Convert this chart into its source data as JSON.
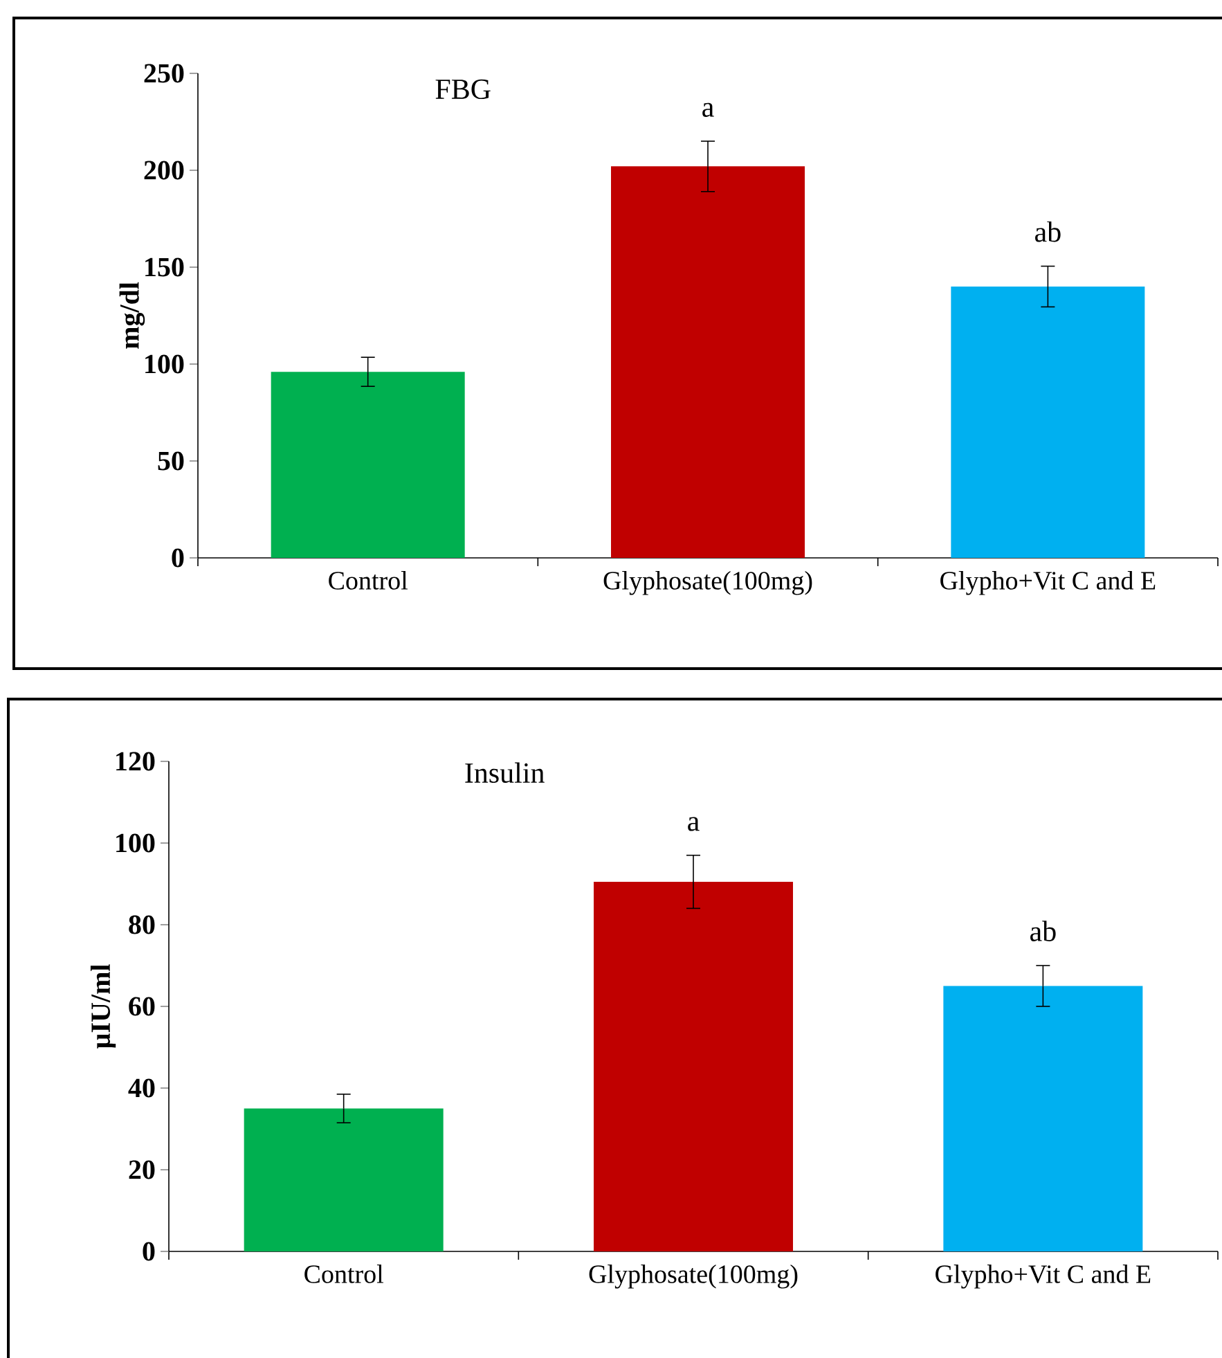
{
  "chart_data": [
    {
      "type": "bar",
      "title": "FBG",
      "ylabel": "mg/dl",
      "categories": [
        "Control",
        "Glyphosate(100mg)",
        "Glypho+Vit C and E"
      ],
      "values": [
        96,
        202,
        140
      ],
      "errors": [
        7.5,
        13,
        10.5
      ],
      "colors": [
        "#00b050",
        "#c00000",
        "#00b0f0"
      ],
      "ylim": [
        0,
        250
      ],
      "yticks": [
        0,
        50,
        100,
        150,
        200,
        250
      ],
      "annotations": [
        {
          "text": "a",
          "x": "Glyphosate(100mg)",
          "y": 202
        },
        {
          "text": "ab",
          "x": "Glypho+Vit C and E",
          "y": 140
        }
      ]
    },
    {
      "type": "bar",
      "title": "Insulin",
      "ylabel": "µIU/ml",
      "categories": [
        "Control",
        "Glyphosate(100mg)",
        "Glypho+Vit C and E"
      ],
      "values": [
        35,
        90.5,
        65
      ],
      "errors": [
        3.5,
        6.5,
        5
      ],
      "colors": [
        "#00b050",
        "#c00000",
        "#00b0f0"
      ],
      "ylim": [
        0,
        120
      ],
      "yticks": [
        0,
        20,
        40,
        60,
        80,
        100,
        120
      ],
      "annotations": [
        {
          "text": "a",
          "x": "Glyphosate(100mg)",
          "y": 90.5
        },
        {
          "text": "ab",
          "x": "Glypho+Vit C and E",
          "y": 65
        }
      ]
    }
  ]
}
